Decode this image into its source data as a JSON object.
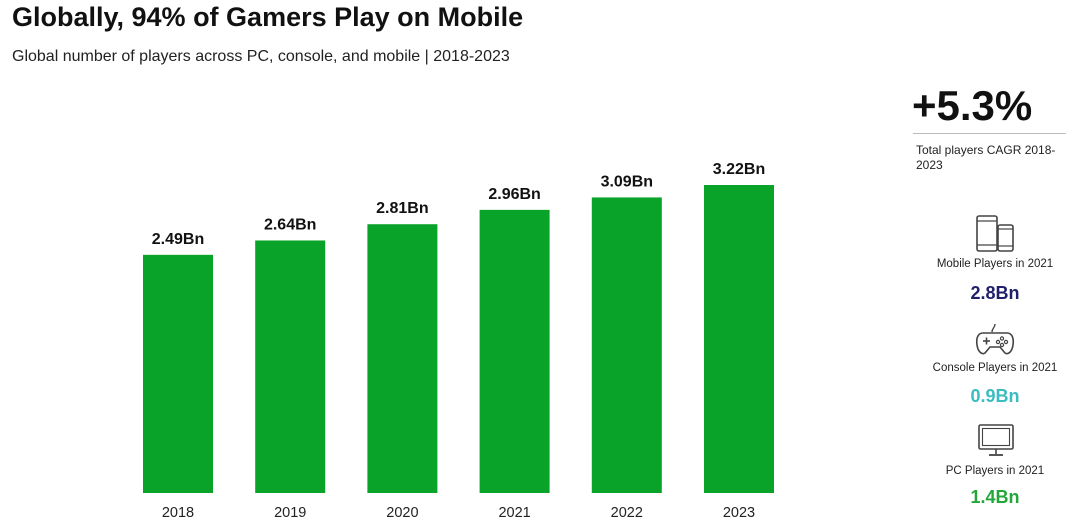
{
  "header": {
    "title": "Globally, 94% of Gamers Play on Mobile",
    "subtitle": "Global number of players across PC, console, and mobile | 2018-2023"
  },
  "chart_data": {
    "type": "bar",
    "title": "Globally, 94% of Gamers Play on Mobile",
    "subtitle": "Global number of players across PC, console, and mobile | 2018-2023",
    "categories": [
      "2018",
      "2019",
      "2020",
      "2021",
      "2022",
      "2023"
    ],
    "values": [
      2.49,
      2.64,
      2.81,
      2.96,
      3.09,
      3.22
    ],
    "data_labels": [
      "2.49Bn",
      "2.64Bn",
      "2.81Bn",
      "2.96Bn",
      "3.09Bn",
      "3.22Bn"
    ],
    "unit": "Bn",
    "xlabel": "",
    "ylabel": "",
    "ylim": [
      0,
      3.22
    ],
    "grid": false,
    "bar_color": "#0aa329"
  },
  "sidebar": {
    "cagr": {
      "value": "+5.3%",
      "label": "Total players CAGR 2018-2023"
    },
    "stats": [
      {
        "icon": "mobile-devices-icon",
        "label": "Mobile Players in 2021",
        "value": "2.8Bn",
        "color": "#1f1f6e"
      },
      {
        "icon": "gamepad-icon",
        "label": "Console Players in 2021",
        "value": "0.9Bn",
        "color": "#3bbcc0"
      },
      {
        "icon": "monitor-icon",
        "label": "PC Players in 2021",
        "value": "1.4Bn",
        "color": "#22a83a"
      }
    ]
  }
}
